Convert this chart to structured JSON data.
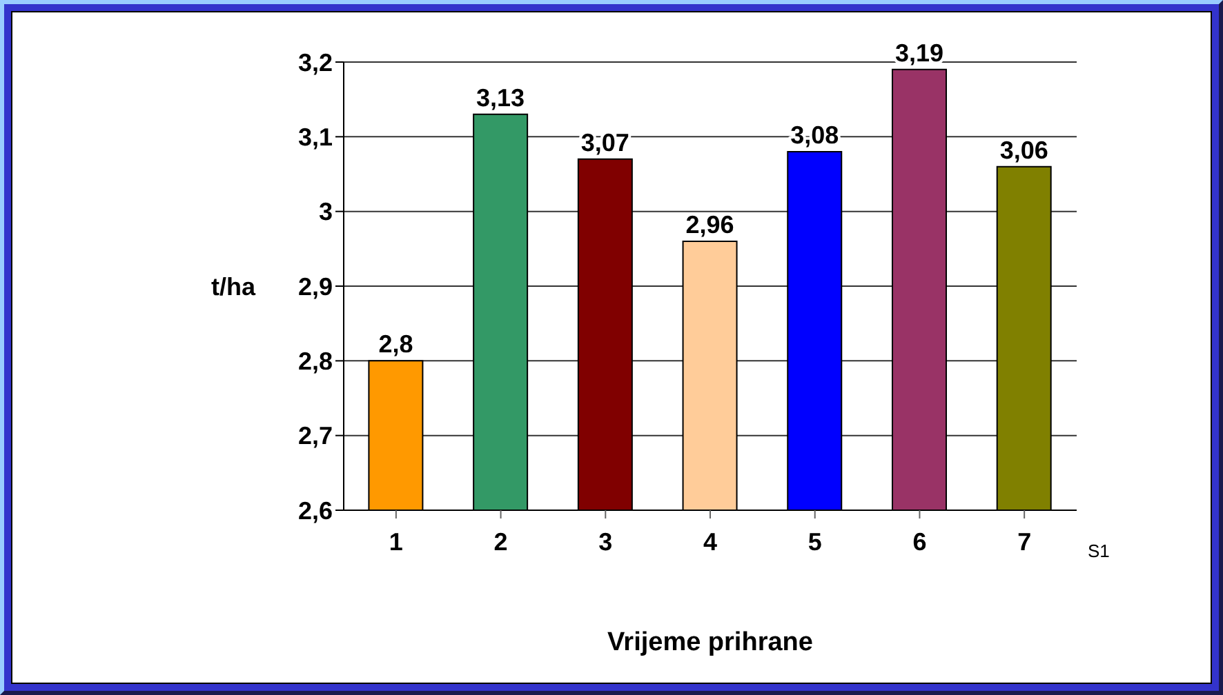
{
  "chart_data": {
    "type": "bar",
    "xlabel": "Vrijeme prihrane",
    "ylabel": "t/ha",
    "categories": [
      "1",
      "2",
      "3",
      "4",
      "5",
      "6",
      "7"
    ],
    "series": [
      {
        "name": "S1",
        "colors": [
          "#ff9900",
          "#339966",
          "#800000",
          "#ffcc99",
          "#0000ff",
          "#993366",
          "#808000"
        ],
        "values": [
          2.8,
          3.13,
          3.07,
          2.96,
          3.08,
          3.19,
          3.06
        ],
        "value_labels": [
          "2,8",
          "3,13",
          "3,07",
          "2,96",
          "3,08",
          "3,19",
          "3,06"
        ]
      }
    ],
    "ylim": [
      2.6,
      3.2
    ],
    "yticks": [
      {
        "value": 2.6,
        "label": "2,6"
      },
      {
        "value": 2.7,
        "label": "2,7"
      },
      {
        "value": 2.8,
        "label": "2,8"
      },
      {
        "value": 2.9,
        "label": "2,9"
      },
      3,
      {
        "value": 3.1,
        "label": "3,1"
      },
      {
        "value": 3.2,
        "label": "3,2"
      }
    ],
    "grid": "y"
  }
}
